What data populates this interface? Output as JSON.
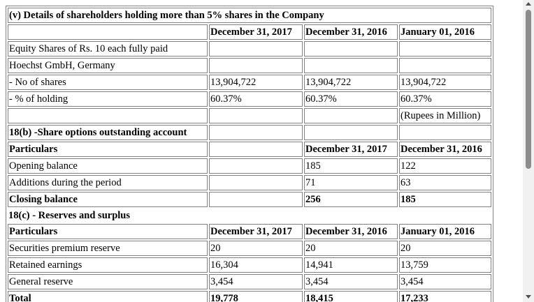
{
  "rows": [
    {
      "label": "(v) Details of shareholders holding more than 5% shares in the Company",
      "span": true,
      "bold": true
    },
    {
      "label": "",
      "c1": "December 31, 2017",
      "c2": "December 31, 2016",
      "c3": "January 01, 2016",
      "hdr": true
    },
    {
      "label": "Equity Shares of Rs. 10 each fully paid",
      "c1": "",
      "c2": "",
      "c3": ""
    },
    {
      "label": "Hoechst GmbH, Germany",
      "c1": "",
      "c2": "",
      "c3": ""
    },
    {
      "label": "- No of shares",
      "c1": "13,904,722",
      "c2": "13,904,722",
      "c3": "13,904,722"
    },
    {
      "label": "- % of holding",
      "c1": "60.37%",
      "c2": "60.37%",
      "c3": "60.37%"
    },
    {
      "label": "",
      "c1": "",
      "c2": "",
      "c3": "(Rupees in Million)"
    },
    {
      "label": "18(b) -Share options outstanding account",
      "c1": "",
      "c2": "",
      "c3": "",
      "bold": true
    },
    {
      "label": "Particulars",
      "c1": "",
      "c2": "December 31, 2017",
      "c3": "December 31, 2016",
      "bold": true,
      "hdr": true
    },
    {
      "label": "Opening balance",
      "c1": "",
      "c2": "185",
      "c3": "122"
    },
    {
      "label": "Additions during the period",
      "c1": "",
      "c2": "71",
      "c3": "63"
    },
    {
      "label": "Closing balance",
      "c1": "",
      "c2": "256",
      "c3": "185",
      "bold": true,
      "hdr": true
    },
    {
      "label": "18(c) - Reserves and surplus",
      "c1": "",
      "c2": "",
      "c3": "",
      "bold": true,
      "nocell": true
    },
    {
      "label": "Particulars",
      "c1": "December 31, 2017",
      "c2": "December 31, 2016",
      "c3": "January 01, 2016",
      "bold": true,
      "hdr": true
    },
    {
      "label": "Securities premium reserve",
      "c1": "20",
      "c2": "20",
      "c3": "20"
    },
    {
      "label": "Retained earnings",
      "c1": "16,304",
      "c2": "14,941",
      "c3": "13,759"
    },
    {
      "label": "General reserve",
      "c1": "3,454",
      "c2": "3,454",
      "c3": "3,454"
    },
    {
      "label": "Total",
      "c1": "19,778",
      "c2": "18,415",
      "c3": "17,233",
      "bold": true,
      "hdr": true
    }
  ]
}
